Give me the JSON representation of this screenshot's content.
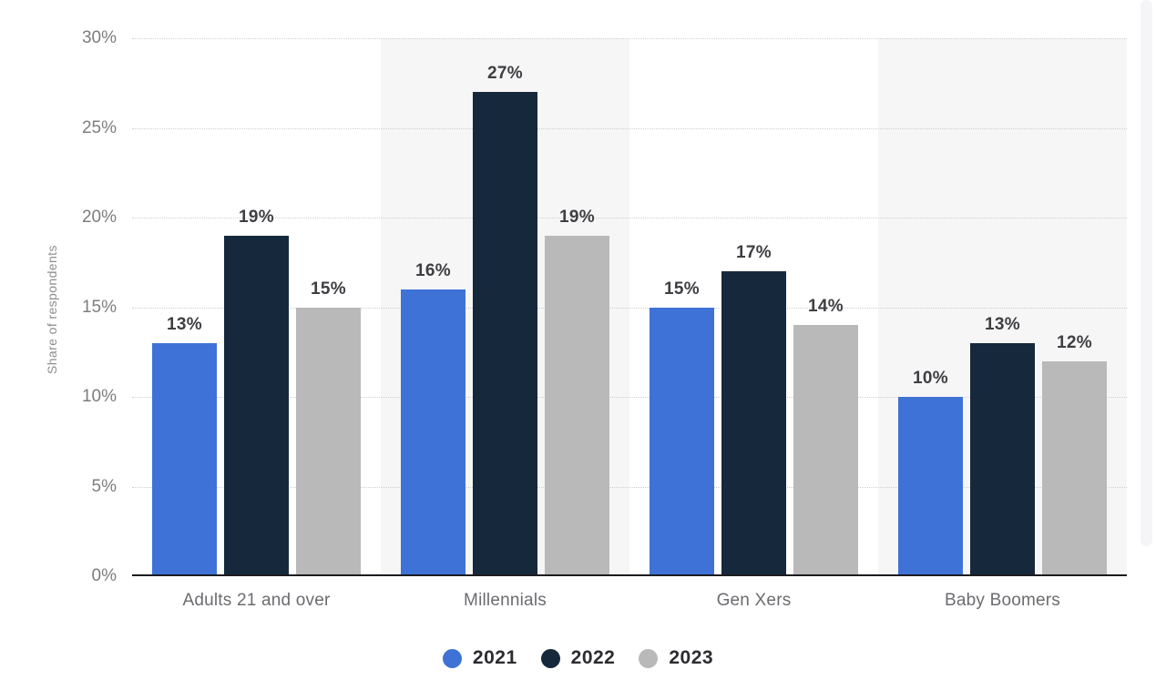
{
  "chart_data": {
    "type": "bar",
    "categories": [
      "Adults 21 and over",
      "Millennials",
      "Gen Xers",
      "Baby Boomers"
    ],
    "series": [
      {
        "name": "2021",
        "color": "#3f72d6",
        "values": [
          13,
          16,
          15,
          10
        ]
      },
      {
        "name": "2022",
        "color": "#16283c",
        "values": [
          19,
          27,
          17,
          13
        ]
      },
      {
        "name": "2023",
        "color": "#b9b9b9",
        "values": [
          15,
          19,
          14,
          12
        ]
      }
    ],
    "title": "",
    "xlabel": "",
    "ylabel": "Share of respondents",
    "ylim": [
      0,
      30
    ],
    "yticks": [
      0,
      5,
      10,
      15,
      20,
      25,
      30
    ],
    "ytick_labels": [
      "0%",
      "5%",
      "10%",
      "15%",
      "20%",
      "25%",
      "30%"
    ],
    "value_suffix": "%",
    "grid": "horizontal-dotted",
    "legend_position": "bottom",
    "band_shading": "alternating column bands (2nd and 4th shaded)"
  },
  "colors": {
    "background": "#ffffff",
    "band_shade": "#f6f6f6",
    "grid": "#cfcfcf",
    "axis": "#1c1c20",
    "tick_text": "#7d7d7d",
    "category_text": "#6c6c71",
    "value_text": "#3e3e43",
    "legend_text": "#2b2b30",
    "ylabel_text": "#8e8e8e"
  }
}
